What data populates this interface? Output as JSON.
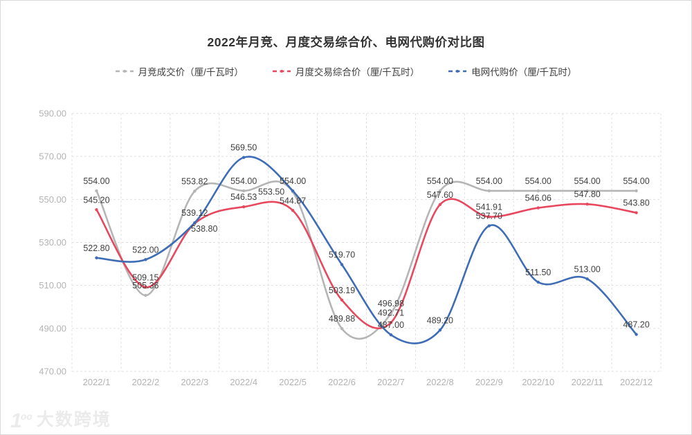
{
  "chart_data": {
    "type": "line",
    "title": "2022年月竞、月度交易综合价、电网代购价对比图",
    "xlabel": "",
    "ylabel": "",
    "unit": "厘/千瓦时",
    "categories": [
      "2022/1",
      "2022/2",
      "2022/3",
      "2022/4",
      "2022/5",
      "2022/6",
      "2022/7",
      "2022/8",
      "2022/9",
      "2022/10",
      "2022/11",
      "2022/12"
    ],
    "ylim": [
      470,
      590
    ],
    "y_ticks": [
      590,
      570,
      550,
      530,
      510,
      490,
      470
    ],
    "grid": "dashed",
    "legend_position": "top",
    "series": [
      {
        "name": "月竞成交价（厘/千瓦时）",
        "color": "#b5b5b5",
        "values": [
          554.0,
          505.36,
          553.82,
          554.0,
          553.5,
          489.88,
          496.98,
          554.0,
          554.0,
          554.0,
          554.0,
          554.0
        ]
      },
      {
        "name": "月度交易综合价（厘/千瓦时）",
        "color": "#e8485e",
        "values": [
          545.2,
          509.15,
          538.8,
          546.53,
          544.87,
          503.19,
          492.71,
          547.6,
          541.91,
          546.06,
          547.8,
          543.8
        ]
      },
      {
        "name": "电网代购价（厘/千瓦时）",
        "color": "#3e6db6",
        "values": [
          522.8,
          522.0,
          539.12,
          569.5,
          554.0,
          519.7,
          487.0,
          489.2,
          537.7,
          511.5,
          513.0,
          487.2
        ]
      }
    ],
    "label_decimals": 2,
    "axis_text_color": "#b3b3b3",
    "data_label_color": "#3f3f3f",
    "grid_color": "#e0e0e0"
  },
  "watermark": {
    "brand": "大数跨境"
  }
}
